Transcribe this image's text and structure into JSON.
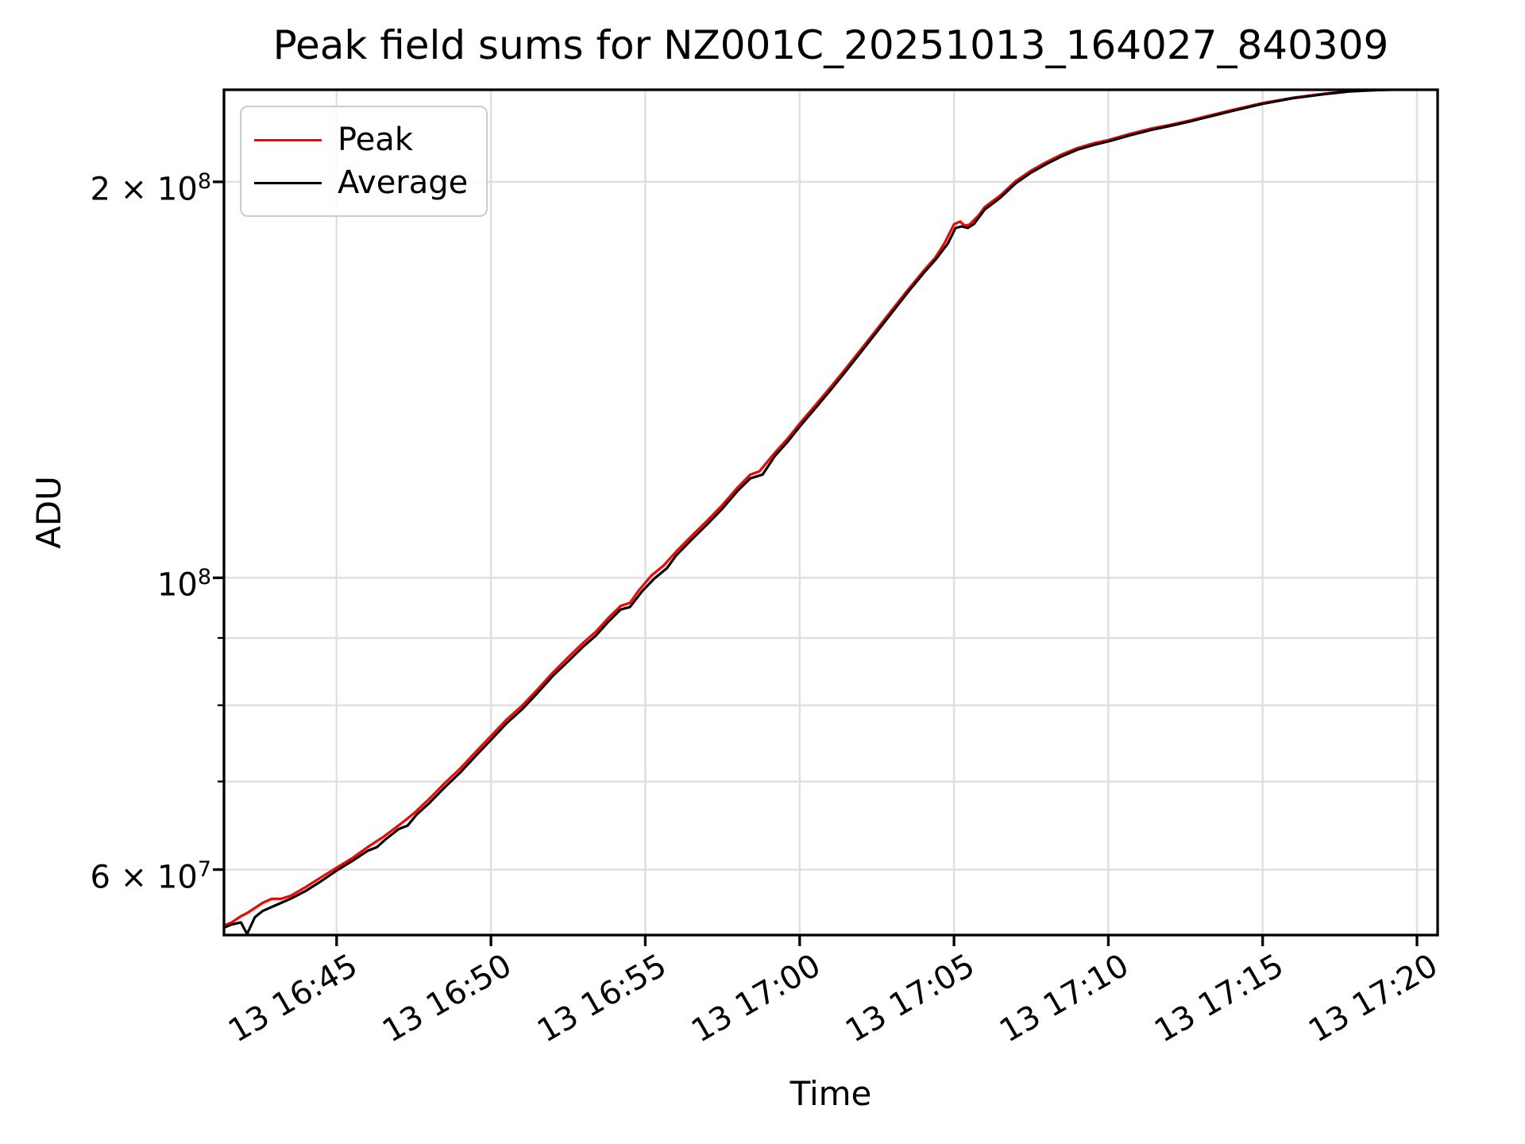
{
  "chart_data": {
    "type": "line",
    "title": "Peak field sums for NZ001C_20251013_164027_840309",
    "xlabel": "Time",
    "ylabel": "ADU",
    "x_unit": "minutes after day 13 16:40",
    "xlim_minutes": [
      1.35,
      40.67
    ],
    "ylim": [
      53500000.0,
      235000000.0
    ],
    "y_scale": "log",
    "grid": true,
    "legend_position": "upper left",
    "x_ticks": [
      {
        "t": 5,
        "label": "13 16:45"
      },
      {
        "t": 10,
        "label": "13 16:50"
      },
      {
        "t": 15,
        "label": "13 16:55"
      },
      {
        "t": 20,
        "label": "13 17:00"
      },
      {
        "t": 25,
        "label": "13 17:05"
      },
      {
        "t": 30,
        "label": "13 17:10"
      },
      {
        "t": 35,
        "label": "13 17:15"
      },
      {
        "t": 40,
        "label": "13 17:20"
      }
    ],
    "y_ticks": [
      {
        "value": 200000000.0,
        "mantissa": "2 × 10",
        "exponent": "8"
      },
      {
        "value": 100000000.0,
        "mantissa": "10",
        "exponent": "8"
      },
      {
        "value": 60000000.0,
        "mantissa": "6 × 10",
        "exponent": "7"
      }
    ],
    "y_minor_gridlines": [
      70000000.0,
      80000000.0,
      90000000.0
    ],
    "series": [
      {
        "name": "Peak",
        "color": "#ff0000",
        "points": [
          [
            1.35,
            54400000.0
          ],
          [
            1.6,
            54700000.0
          ],
          [
            1.9,
            55300000.0
          ],
          [
            2.1,
            55600000.0
          ],
          [
            2.35,
            56100000.0
          ],
          [
            2.6,
            56600000.0
          ],
          [
            2.9,
            57000000.0
          ],
          [
            3.2,
            57000000.0
          ],
          [
            3.5,
            57300000.0
          ],
          [
            4.0,
            58200000.0
          ],
          [
            4.5,
            59200000.0
          ],
          [
            5.0,
            60200000.0
          ],
          [
            5.5,
            61200000.0
          ],
          [
            6.0,
            62400000.0
          ],
          [
            6.5,
            63500000.0
          ],
          [
            7.0,
            64800000.0
          ],
          [
            7.5,
            66200000.0
          ],
          [
            8.0,
            67900000.0
          ],
          [
            8.5,
            69800000.0
          ],
          [
            9.0,
            71600000.0
          ],
          [
            9.5,
            73700000.0
          ],
          [
            10.0,
            75800000.0
          ],
          [
            10.5,
            78000000.0
          ],
          [
            11.0,
            79900000.0
          ],
          [
            11.5,
            82200000.0
          ],
          [
            12.0,
            84700000.0
          ],
          [
            12.5,
            87000000.0
          ],
          [
            13.0,
            89300000.0
          ],
          [
            13.4,
            91000000.0
          ],
          [
            13.8,
            93200000.0
          ],
          [
            14.2,
            95200000.0
          ],
          [
            14.5,
            95700000.0
          ],
          [
            14.8,
            97900000.0
          ],
          [
            15.2,
            100400000.0
          ],
          [
            15.6,
            102200000.0
          ],
          [
            16.0,
            104700000.0
          ],
          [
            16.5,
            107600000.0
          ],
          [
            17.0,
            110500000.0
          ],
          [
            17.5,
            113600000.0
          ],
          [
            18.0,
            117200000.0
          ],
          [
            18.4,
            119800000.0
          ],
          [
            18.7,
            120500000.0
          ],
          [
            19.2,
            124500000.0
          ],
          [
            19.6,
            127500000.0
          ],
          [
            20.0,
            131000000.0
          ],
          [
            20.5,
            135200000.0
          ],
          [
            21.0,
            139600000.0
          ],
          [
            21.5,
            144300000.0
          ],
          [
            22.0,
            149300000.0
          ],
          [
            22.5,
            154500000.0
          ],
          [
            23.0,
            159900000.0
          ],
          [
            23.5,
            165500000.0
          ],
          [
            24.0,
            171000000.0
          ],
          [
            24.4,
            175200000.0
          ],
          [
            24.7,
            179800000.0
          ],
          [
            25.0,
            185700000.0
          ],
          [
            25.2,
            186600000.0
          ],
          [
            25.35,
            185200000.0
          ],
          [
            25.5,
            185600000.0
          ],
          [
            25.8,
            188600000.0
          ],
          [
            26.0,
            191400000.0
          ],
          [
            26.5,
            195300000.0
          ],
          [
            27.0,
            200300000.0
          ],
          [
            27.5,
            204000000.0
          ],
          [
            28.0,
            207100000.0
          ],
          [
            28.5,
            209900000.0
          ],
          [
            29.0,
            212200000.0
          ],
          [
            29.5,
            213900000.0
          ],
          [
            30.0,
            215200000.0
          ],
          [
            30.7,
            217500000.0
          ],
          [
            31.4,
            219600000.0
          ],
          [
            32.0,
            221000000.0
          ],
          [
            32.6,
            222600000.0
          ],
          [
            33.2,
            224400000.0
          ],
          [
            34.0,
            226800000.0
          ],
          [
            35.0,
            229600000.0
          ],
          [
            36.0,
            231800000.0
          ],
          [
            37.0,
            233400000.0
          ],
          [
            37.8,
            234400000.0
          ],
          [
            38.6,
            234900000.0
          ],
          [
            39.4,
            235200000.0
          ],
          [
            40.67,
            235300000.0
          ]
        ]
      },
      {
        "name": "Average",
        "color": "#000000",
        "points": [
          [
            1.35,
            54200000.0
          ],
          [
            1.6,
            54500000.0
          ],
          [
            1.9,
            54700000.0
          ],
          [
            2.1,
            53600000.0
          ],
          [
            2.35,
            55200000.0
          ],
          [
            2.6,
            55800000.0
          ],
          [
            2.9,
            56200000.0
          ],
          [
            3.2,
            56600000.0
          ],
          [
            3.5,
            57000000.0
          ],
          [
            4.0,
            57800000.0
          ],
          [
            4.5,
            58800000.0
          ],
          [
            5.0,
            59900000.0
          ],
          [
            5.5,
            60900000.0
          ],
          [
            6.0,
            62000000.0
          ],
          [
            6.3,
            62400000.0
          ],
          [
            6.6,
            63300000.0
          ],
          [
            7.0,
            64400000.0
          ],
          [
            7.3,
            64800000.0
          ],
          [
            7.6,
            66100000.0
          ],
          [
            8.0,
            67400000.0
          ],
          [
            8.5,
            69300000.0
          ],
          [
            9.0,
            71100000.0
          ],
          [
            9.5,
            73200000.0
          ],
          [
            10.0,
            75300000.0
          ],
          [
            10.5,
            77500000.0
          ],
          [
            11.0,
            79400000.0
          ],
          [
            11.5,
            81700000.0
          ],
          [
            12.0,
            84200000.0
          ],
          [
            12.5,
            86400000.0
          ],
          [
            13.0,
            88700000.0
          ],
          [
            13.4,
            90400000.0
          ],
          [
            13.8,
            92600000.0
          ],
          [
            14.2,
            94600000.0
          ],
          [
            14.5,
            95000000.0
          ],
          [
            14.9,
            97700000.0
          ],
          [
            15.3,
            99900000.0
          ],
          [
            15.7,
            101700000.0
          ],
          [
            16.0,
            104000000.0
          ],
          [
            16.5,
            106900000.0
          ],
          [
            17.0,
            109800000.0
          ],
          [
            17.5,
            112900000.0
          ],
          [
            18.0,
            116500000.0
          ],
          [
            18.4,
            119000000.0
          ],
          [
            18.8,
            119800000.0
          ],
          [
            19.2,
            123800000.0
          ],
          [
            19.6,
            126800000.0
          ],
          [
            20.0,
            130300000.0
          ],
          [
            20.5,
            134500000.0
          ],
          [
            21.0,
            138900000.0
          ],
          [
            21.5,
            143600000.0
          ],
          [
            22.0,
            148600000.0
          ],
          [
            22.5,
            153800000.0
          ],
          [
            23.0,
            159200000.0
          ],
          [
            23.5,
            164800000.0
          ],
          [
            24.0,
            170300000.0
          ],
          [
            24.4,
            174500000.0
          ],
          [
            24.8,
            179500000.0
          ],
          [
            25.05,
            184500000.0
          ],
          [
            25.25,
            185000000.0
          ],
          [
            25.45,
            184500000.0
          ],
          [
            25.65,
            185800000.0
          ],
          [
            26.0,
            190600000.0
          ],
          [
            26.5,
            194500000.0
          ],
          [
            27.0,
            199500000.0
          ],
          [
            27.5,
            203300000.0
          ],
          [
            28.0,
            206400000.0
          ],
          [
            28.5,
            209200000.0
          ],
          [
            29.0,
            211600000.0
          ],
          [
            29.5,
            213300000.0
          ],
          [
            30.0,
            214700000.0
          ],
          [
            30.7,
            217000000.0
          ],
          [
            31.4,
            219100000.0
          ],
          [
            32.0,
            220600000.0
          ],
          [
            32.6,
            222200000.0
          ],
          [
            33.2,
            224000000.0
          ],
          [
            34.0,
            226400000.0
          ],
          [
            35.0,
            229300000.0
          ],
          [
            36.0,
            231600000.0
          ],
          [
            37.0,
            233200000.0
          ],
          [
            37.8,
            234300000.0
          ],
          [
            38.6,
            234800000.0
          ],
          [
            39.4,
            235100000.0
          ],
          [
            40.67,
            235300000.0
          ]
        ]
      }
    ]
  },
  "colors": {
    "grid": "#e0e0e0",
    "spine": "#000000",
    "background": "#ffffff",
    "legend_border": "#cbcbcb"
  }
}
